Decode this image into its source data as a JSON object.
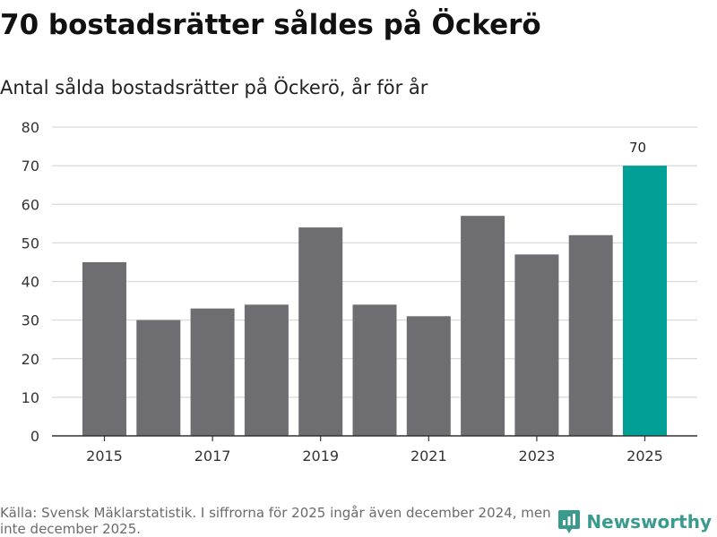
{
  "header": {
    "title": "70 bostadsrätter såldes på Öckerö",
    "subtitle": "Antal sålda bostadsrätter på Öckerö, år för år"
  },
  "chart_data": {
    "type": "bar",
    "title": "70 bostadsrätter såldes på Öckerö",
    "subtitle": "Antal sålda bostadsrätter på Öckerö, år för år",
    "xlabel": "",
    "ylabel": "",
    "categories": [
      "2015",
      "2016",
      "2017",
      "2018",
      "2019",
      "2020",
      "2021",
      "2022",
      "2023",
      "2024",
      "2025"
    ],
    "values": [
      45,
      30,
      33,
      34,
      54,
      34,
      31,
      57,
      47,
      52,
      70
    ],
    "ylim": [
      0,
      80
    ],
    "yticks": [
      "0",
      "10",
      "20",
      "30",
      "40",
      "50",
      "60",
      "70",
      "80"
    ],
    "xtick_labels": [
      "2015",
      "2017",
      "2019",
      "2021",
      "2023",
      "2025"
    ],
    "highlight_index": 10,
    "data_labels": [
      {
        "index": 10,
        "text": "70"
      }
    ],
    "colors": {
      "bar": "#6e6d72",
      "highlight": "#00a096",
      "grid": "#d9d9d9",
      "axis": "#333333"
    },
    "grid": true
  },
  "footer": {
    "source": "Källa: Svensk Mäklarstatistik. I siffrorna för 2025 ingår även december 2024, men inte december 2025."
  },
  "brand": {
    "name": "Newsworthy",
    "icon": "newsworthy-logo-icon",
    "color": "#3a9a8e"
  }
}
